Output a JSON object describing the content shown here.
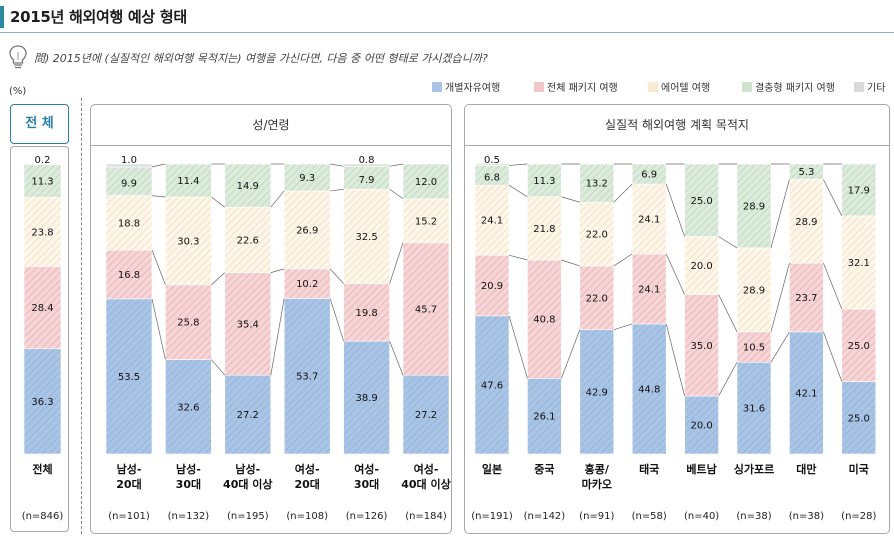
{
  "header": {
    "title": "2015년 해외여행 예상 형태"
  },
  "question": "問) 2015년에 (실질적인 해외여행 목적지는) 여행을 가신다면, 다음 중 어떤 형태로 가시겠습니까?",
  "unit_label": "(%)",
  "legend": [
    {
      "name": "개별자유여행",
      "color": "#a9c4e4",
      "pattern": "blue"
    },
    {
      "name": "전체 패키지 여행",
      "color": "#f2c7c9",
      "pattern": "red"
    },
    {
      "name": "에어텔 여행",
      "color": "#f9ead2",
      "pattern": "yellow"
    },
    {
      "name": "결충형 패키지 여행",
      "color": "#cfe3cf",
      "pattern": "green"
    },
    {
      "name": "기타",
      "color": "#d9d9d9",
      "pattern": "gray"
    }
  ],
  "panels": {
    "total": "전 체",
    "gender_age": "성/연령",
    "destination": "실질적 해외여행 계획 목적지"
  },
  "chart_data": {
    "type": "bar",
    "stacked": true,
    "percent": true,
    "ylim": [
      0,
      100
    ],
    "series_order": [
      "개별자유여행",
      "전체 패키지 여행",
      "에어텔 여행",
      "결충형 패키지 여행",
      "기타"
    ],
    "groups": [
      {
        "panel": "total",
        "bars": [
          {
            "label": [
              "전체"
            ],
            "n": "(n=846)",
            "values": [
              36.3,
              28.4,
              23.8,
              11.3,
              0.2
            ]
          }
        ]
      },
      {
        "panel": "gender_age",
        "bars": [
          {
            "label": [
              "남성-",
              "20대"
            ],
            "n": "(n=101)",
            "values": [
              53.5,
              16.8,
              18.8,
              9.9,
              1.0
            ]
          },
          {
            "label": [
              "남성-",
              "30대"
            ],
            "n": "(n=132)",
            "values": [
              32.6,
              25.8,
              30.3,
              11.4,
              null
            ]
          },
          {
            "label": [
              "남성-",
              "40대 이상"
            ],
            "n": "(n=195)",
            "values": [
              27.2,
              35.4,
              22.6,
              14.9,
              null
            ]
          },
          {
            "label": [
              "여성-",
              "20대"
            ],
            "n": "(n=108)",
            "values": [
              53.7,
              10.2,
              26.9,
              9.3,
              null
            ]
          },
          {
            "label": [
              "여성-",
              "30대"
            ],
            "n": "(n=126)",
            "values": [
              38.9,
              19.8,
              32.5,
              7.9,
              0.8
            ]
          },
          {
            "label": [
              "여성-",
              "40대 이상"
            ],
            "n": "(n=184)",
            "values": [
              27.2,
              45.7,
              15.2,
              12.0,
              null
            ]
          }
        ]
      },
      {
        "panel": "destination",
        "bars": [
          {
            "label": [
              "일본"
            ],
            "n": "(n=191)",
            "values": [
              47.6,
              20.9,
              24.1,
              6.8,
              0.5
            ]
          },
          {
            "label": [
              "중국"
            ],
            "n": "(n=142)",
            "values": [
              26.1,
              40.8,
              21.8,
              11.3,
              null
            ]
          },
          {
            "label": [
              "홍콩/",
              "마카오"
            ],
            "n": "(n=91)",
            "values": [
              42.9,
              22.0,
              22.0,
              13.2,
              null
            ]
          },
          {
            "label": [
              "태국"
            ],
            "n": "(n=58)",
            "values": [
              44.8,
              24.1,
              24.1,
              6.9,
              null
            ]
          },
          {
            "label": [
              "베트남"
            ],
            "n": "(n=40)",
            "values": [
              20.0,
              35.0,
              20.0,
              25.0,
              null
            ]
          },
          {
            "label": [
              "싱가포르"
            ],
            "n": "(n=38)",
            "values": [
              31.6,
              10.5,
              28.9,
              28.9,
              null
            ]
          },
          {
            "label": [
              "대만"
            ],
            "n": "(n=38)",
            "values": [
              42.1,
              23.7,
              28.9,
              5.3,
              null
            ]
          },
          {
            "label": [
              "미국"
            ],
            "n": "(n=28)",
            "values": [
              25.0,
              25.0,
              32.1,
              17.9,
              null
            ]
          }
        ]
      }
    ]
  }
}
